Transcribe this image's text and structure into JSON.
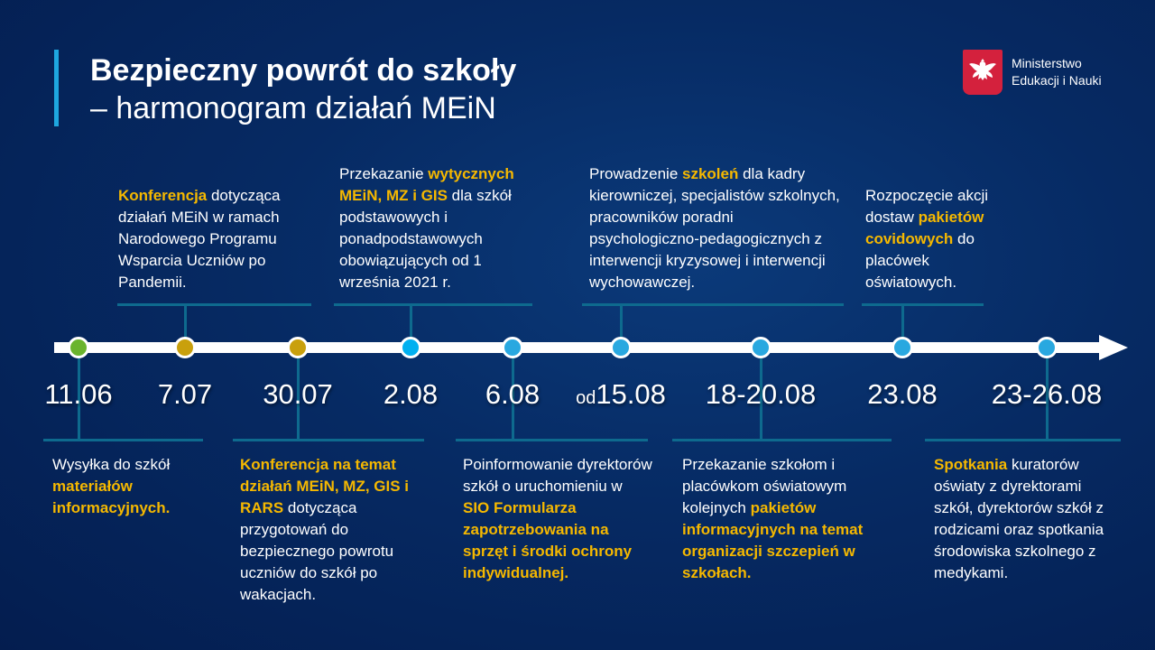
{
  "header": {
    "title": "Bezpieczny powrót do szkoły",
    "subtitle": "– harmonogram działań MEiN"
  },
  "logo": {
    "line1": "Ministerstwo",
    "line2": "Edukacji i Nauki"
  },
  "colors": {
    "green": "#6ab42d",
    "gold": "#c9a00c",
    "blue": "#00b0f0",
    "lightblue": "#29a8e0",
    "highlight": "#f5b800"
  },
  "events": [
    {
      "date": "11.06",
      "dot": "green",
      "pos": "bottom",
      "text": [
        {
          "t": "Wysyłka do szkół "
        },
        {
          "t": "materiałów informacyjnych.",
          "hl": true
        }
      ]
    },
    {
      "date": "7.07",
      "dot": "gold",
      "pos": "top",
      "text": [
        {
          "t": "Konferencja",
          "hl": true
        },
        {
          "t": " dotycząca działań MEiN w ramach Narodowego Programu Wsparcia Uczniów po Pandemii."
        }
      ]
    },
    {
      "date": "30.07",
      "dot": "gold",
      "pos": "bottom",
      "text": [
        {
          "t": "Konferencja na temat działań MEiN, MZ, GIS i RARS",
          "hl": true
        },
        {
          "t": " dotycząca przygotowań do bezpiecznego powrotu uczniów do szkół po wakacjach."
        }
      ]
    },
    {
      "date": "2.08",
      "dot": "blue",
      "pos": "top",
      "text": [
        {
          "t": "Przekazanie "
        },
        {
          "t": "wytycznych MEiN, MZ i GIS",
          "hl": true
        },
        {
          "t": " dla szkół podstawowych i ponadpodstawowych obowiązujących od 1 września 2021 r."
        }
      ]
    },
    {
      "date": "6.08",
      "dot": "lightblue",
      "pos": "bottom",
      "text": [
        {
          "t": "Poinformowanie dyrektorów szkół o uruchomieniu w "
        },
        {
          "t": "SIO Formularza zapotrzebowania na sprzęt i środki ochrony indywidualnej.",
          "hl": true
        }
      ]
    },
    {
      "date_prefix": "od",
      "date": "15.08",
      "dot": "lightblue",
      "pos": "top",
      "text": [
        {
          "t": "Prowadzenie "
        },
        {
          "t": "szkoleń",
          "hl": true
        },
        {
          "t": " dla kadry kierowniczej, specjalistów szkolnych, pracowników poradni psychologiczno-pedagogicznych z interwencji kryzysowej i interwencji wychowawczej."
        }
      ]
    },
    {
      "date": "18-20.08",
      "dot": "lightblue",
      "pos": "bottom",
      "text": [
        {
          "t": "Przekazanie szkołom i placówkom oświatowym kolejnych "
        },
        {
          "t": "pakietów informacyjnych na temat organizacji szczepień w szkołach.",
          "hl": true
        }
      ]
    },
    {
      "date": "23.08",
      "dot": "lightblue",
      "pos": "top",
      "text": [
        {
          "t": "Rozpoczęcie akcji dostaw "
        },
        {
          "t": "pakietów covidowych",
          "hl": true
        },
        {
          "t": " do placówek oświatowych."
        }
      ]
    },
    {
      "date": "23-26.08",
      "dot": "lightblue",
      "pos": "bottom",
      "text": [
        {
          "t": "Spotkania",
          "hl": true
        },
        {
          "t": " kuratorów oświaty z dyrektorami szkół, dyrektorów szkół z rodzicami oraz spotkania środowiska szkolnego z medykami."
        }
      ]
    }
  ]
}
